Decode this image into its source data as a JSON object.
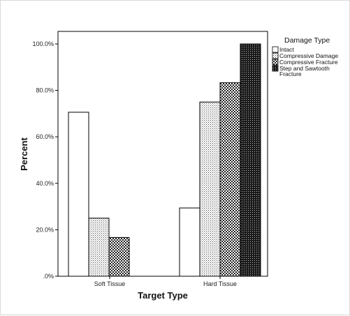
{
  "chart_data": {
    "type": "bar",
    "title": "",
    "xlabel": "Target Type",
    "ylabel": "Percent",
    "categories": [
      "Soft Tissue",
      "Hard Tissue"
    ],
    "ylim": [
      0,
      100
    ],
    "yticks": [
      0,
      20,
      40,
      60,
      80,
      100
    ],
    "ytick_labels": [
      ".0%",
      "20.0%",
      "40.0%",
      "60.0%",
      "80.0%",
      "100.0%"
    ],
    "grid": false,
    "legend": {
      "title": "Damage Type",
      "placement": "right"
    },
    "series": [
      {
        "name": "Intact",
        "values": [
          70.6,
          29.4
        ],
        "pattern": "empty"
      },
      {
        "name": "Compressive Damage",
        "values": [
          25.0,
          75.0
        ],
        "pattern": "dots"
      },
      {
        "name": "Compressive Fracture",
        "values": [
          16.7,
          83.3
        ],
        "pattern": "checker"
      },
      {
        "name": "Step and Sawtooth Fracture",
        "values": [
          null,
          100.0
        ],
        "pattern": "dense"
      }
    ]
  }
}
